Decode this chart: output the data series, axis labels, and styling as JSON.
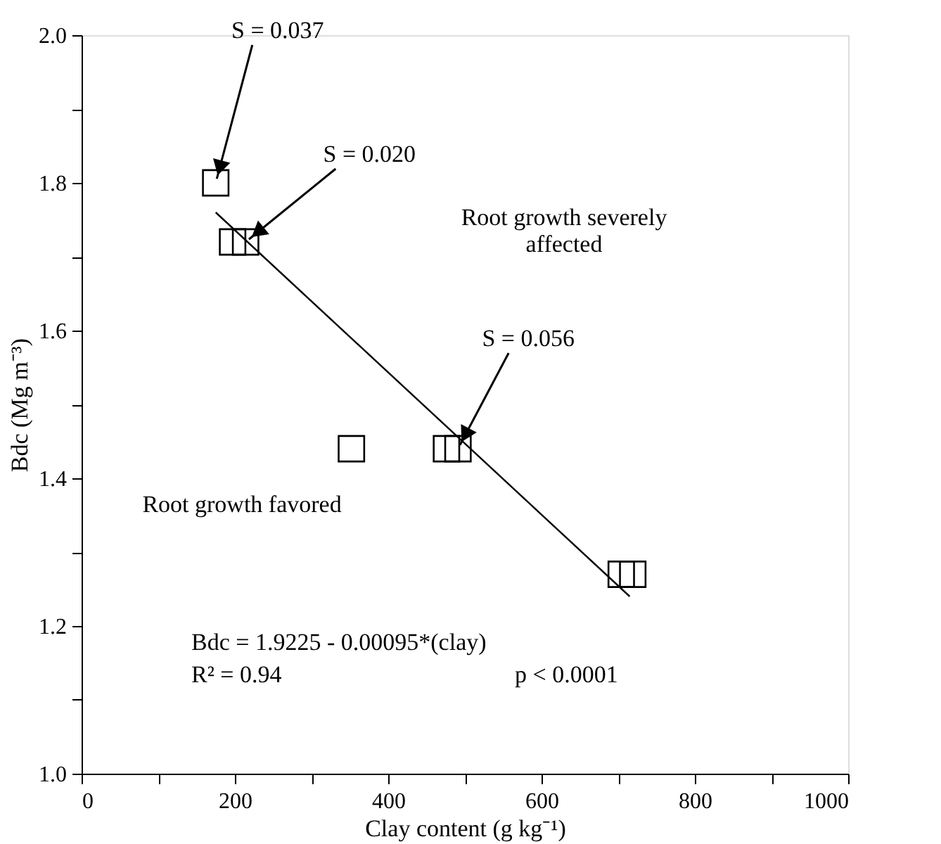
{
  "chart_data": {
    "type": "scatter",
    "xlabel": "Clay content (g kg⁻¹)",
    "ylabel": "Bdc (Mg m⁻³)",
    "xlim": [
      0,
      1000
    ],
    "xticks": [
      0,
      {
        "value": 100,
        "label": null
      },
      200,
      {
        "value": 300,
        "label": null
      },
      400,
      {
        "value": 500,
        "label": null
      },
      600,
      {
        "value": 700,
        "label": null
      },
      800,
      {
        "value": 900,
        "label": null
      },
      1000
    ],
    "ylim": [
      1.0,
      2.0
    ],
    "yticks": [
      {
        "value": 1.0,
        "label": "1.0"
      },
      {
        "value": 1.1,
        "label": null
      },
      {
        "value": 1.2,
        "label": "1.2"
      },
      {
        "value": 1.3,
        "label": null
      },
      {
        "value": 1.4,
        "label": "1.4"
      },
      {
        "value": 1.5,
        "label": null
      },
      {
        "value": 1.6,
        "label": "1.6"
      },
      {
        "value": 1.7,
        "label": null
      },
      {
        "value": 1.8,
        "label": "1.8"
      },
      {
        "value": 1.9,
        "label": null
      },
      {
        "value": 2.0,
        "label": "2.0"
      }
    ],
    "grid": false,
    "marker": "square",
    "series": [
      {
        "type": "scatter",
        "color": "#000000",
        "x": [
          175,
          197,
          214,
          352,
          476,
          491,
          704,
          719
        ],
        "values": [
          1.8,
          1.72,
          1.72,
          1.44,
          1.44,
          1.44,
          1.27,
          1.27
        ]
      },
      {
        "type": "line",
        "color": "#000000",
        "x": [
          175,
          715
        ],
        "values": [
          1.76,
          1.24
        ],
        "line_style": "solid",
        "marker": "none"
      }
    ],
    "annotations": [
      {
        "text": "S = 0.037",
        "x": 175,
        "y": 1.8
      },
      {
        "text": "S = 0.020",
        "x": 214,
        "y": 1.72
      },
      {
        "text": "S = 0.056",
        "x": 491,
        "y": 1.44
      },
      "Root growth severely\naffected",
      "Root growth favored",
      "Bdc = 1.9225 - 0.00095*(clay)",
      "R² = 0.94",
      "p < 0.0001"
    ]
  }
}
